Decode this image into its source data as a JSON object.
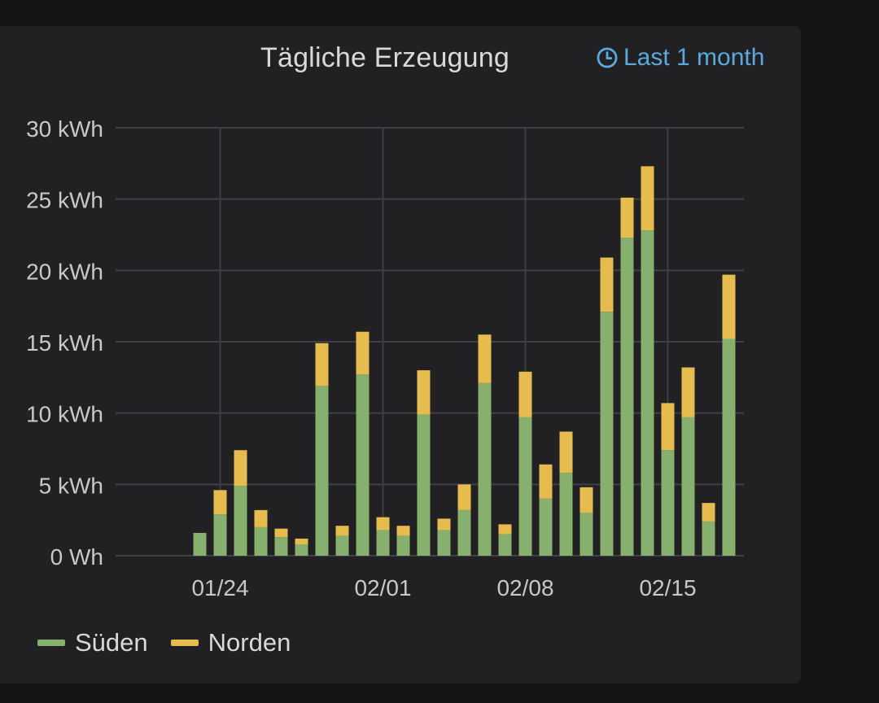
{
  "panel": {
    "title": "Tägliche Erzeugung",
    "time_range": "Last 1 month",
    "time_range_icon": "clock-icon"
  },
  "legend": [
    {
      "label": "Süden",
      "color": "#87af6e"
    },
    {
      "label": "Norden",
      "color": "#e6bc4f"
    }
  ],
  "chart_data": {
    "type": "bar",
    "stacked": true,
    "x_start": "01/21",
    "x": [
      "01/21",
      "01/22",
      "01/23",
      "01/24",
      "01/25",
      "01/26",
      "01/27",
      "01/28",
      "01/29",
      "01/30",
      "01/31",
      "02/01",
      "02/02",
      "02/03",
      "02/04",
      "02/05",
      "02/06",
      "02/07",
      "02/08",
      "02/09",
      "02/10",
      "02/11",
      "02/12",
      "02/13",
      "02/14",
      "02/15",
      "02/16",
      "02/17",
      "02/18"
    ],
    "series": [
      {
        "name": "Süden",
        "color": "#87af6e",
        "values": [
          0,
          0,
          1.6,
          2.9,
          4.9,
          2.0,
          1.3,
          0.8,
          11.9,
          1.4,
          12.7,
          1.8,
          1.4,
          9.9,
          1.8,
          3.2,
          12.1,
          1.5,
          9.7,
          4.0,
          5.8,
          3.0,
          17.1,
          22.3,
          22.8,
          7.4,
          9.7,
          2.4,
          15.2
        ]
      },
      {
        "name": "Norden",
        "color": "#e6bc4f",
        "values": [
          0,
          0,
          0,
          1.7,
          2.5,
          1.2,
          0.6,
          0.4,
          3.0,
          0.7,
          3.0,
          0.9,
          0.7,
          3.1,
          0.8,
          1.8,
          3.4,
          0.7,
          3.2,
          2.4,
          2.9,
          1.8,
          3.8,
          2.8,
          4.5,
          3.3,
          3.5,
          1.3,
          4.5
        ]
      }
    ],
    "x_ticks": [
      "01/24",
      "02/01",
      "02/08",
      "02/15"
    ],
    "y_ticks": [
      "0 Wh",
      "5 kWh",
      "10 kWh",
      "15 kWh",
      "20 kWh",
      "25 kWh",
      "30 kWh"
    ],
    "y_tick_values": [
      0,
      5,
      10,
      15,
      20,
      25,
      30
    ],
    "ylim": [
      0,
      30
    ],
    "grid": true,
    "legend_position": "bottom-left"
  }
}
